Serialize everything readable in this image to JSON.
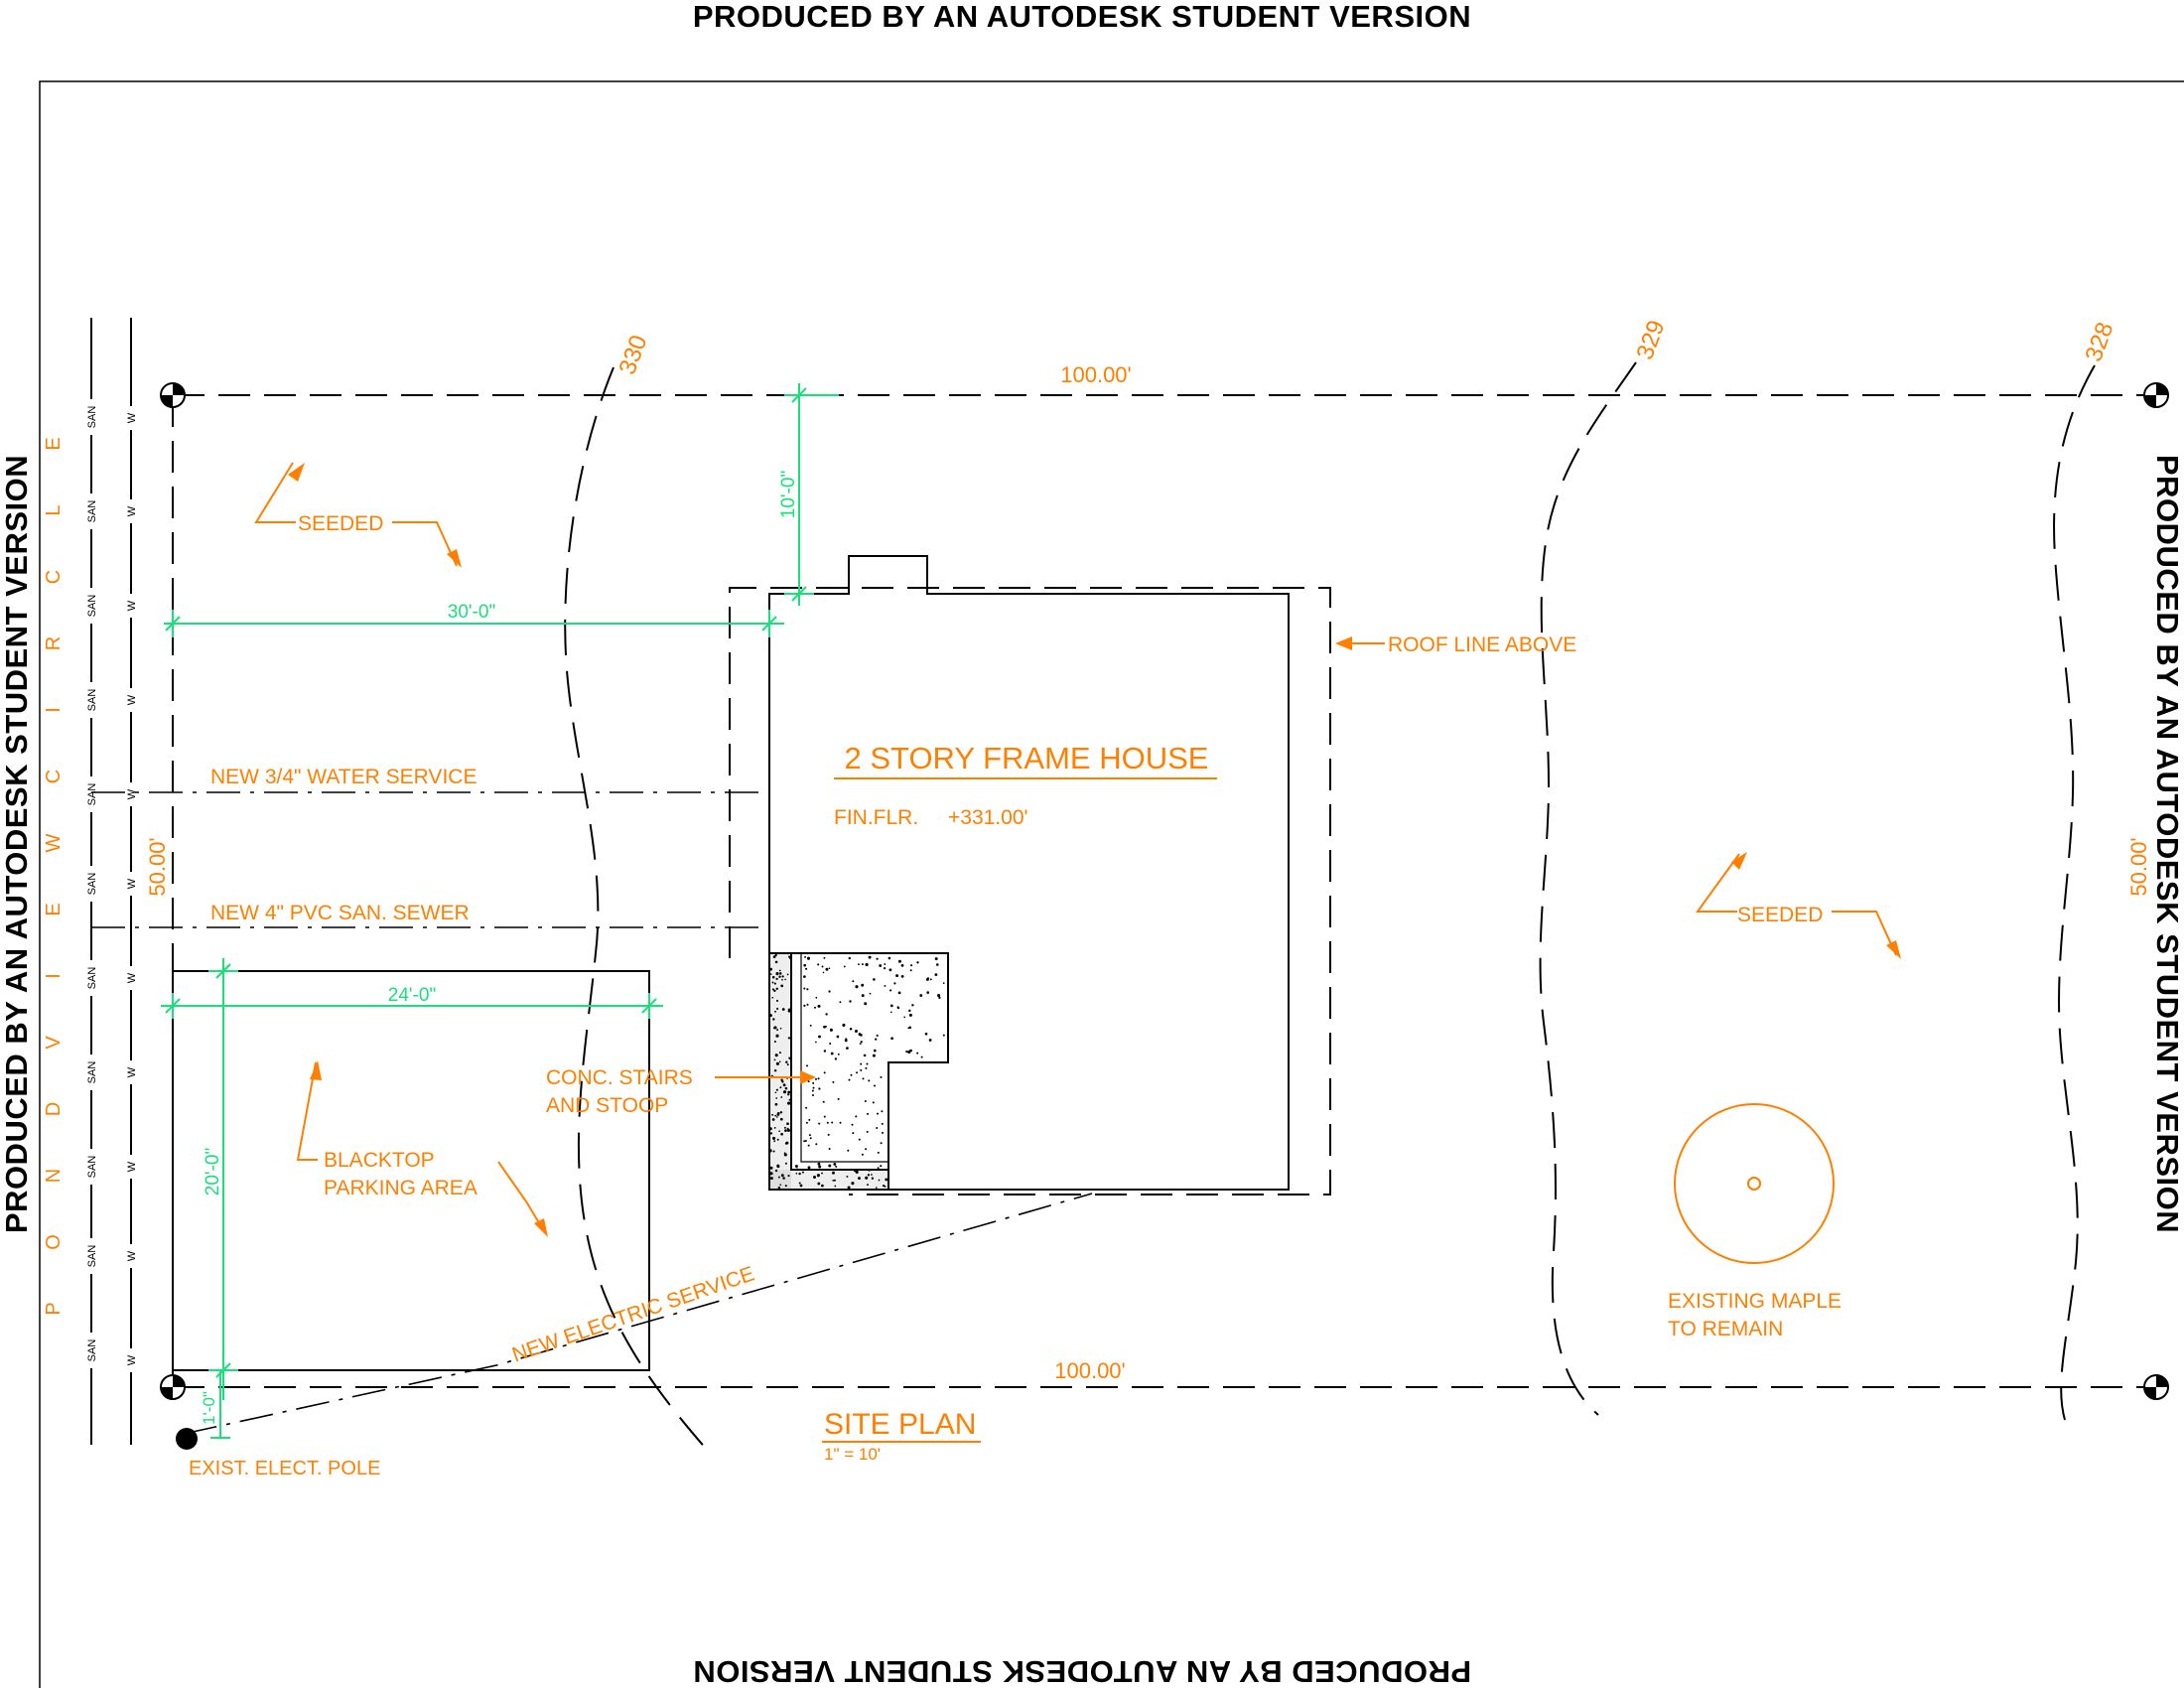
{
  "watermark": {
    "top": "PRODUCED BY AN AUTODESK STUDENT VERSION",
    "left": "PRODUCED BY AN AUTODESK STUDENT VERSION",
    "right": "PRODUCED BY AN AUTODESK STUDENT VERSION",
    "bottom": "PRODUCED BY AN AUTODESK STUDENT VERSION"
  },
  "street": {
    "name_letters": [
      "P",
      "O",
      "N",
      "D",
      "V",
      "I",
      "E",
      "W",
      "C",
      "I",
      "R",
      "C",
      "L",
      "E"
    ],
    "san_label": "SAN",
    "water_label": "W"
  },
  "property": {
    "top_length": "100.00'",
    "bottom_length": "100.00'",
    "left_width": "50.00'",
    "right_width": "50.00'"
  },
  "contours": [
    "330",
    "329",
    "328"
  ],
  "dimensions": {
    "setback_front": "10'-0\"",
    "setback_side": "30'-0\"",
    "parking_width": "24'-0\"",
    "parking_depth": "20'-0\"",
    "pole_offset": "1'-0\""
  },
  "labels": {
    "seeded_1": "SEEDED",
    "seeded_2": "SEEDED",
    "roof_line": "ROOF LINE ABOVE",
    "house_title": "2 STORY FRAME HOUSE",
    "fin_floor_label": "FIN.FLR.",
    "fin_floor_value": "+331.00'",
    "water_service": "NEW 3/4\" WATER SERVICE",
    "sewer": "NEW 4\" PVC SAN. SEWER",
    "stairs_1": "CONC. STAIRS",
    "stairs_2": "AND STOOP",
    "parking_1": "BLACKTOP",
    "parking_2": "PARKING AREA",
    "electric": "NEW ELECTRIC SERVICE",
    "maple_1": "EXISTING MAPLE",
    "maple_2": "TO REMAIN",
    "pole": "EXIST. ELECT. POLE"
  },
  "title_block": {
    "title": "SITE PLAN",
    "scale": "1\" = 10'"
  },
  "colors": {
    "annotation": "#ff7f00",
    "dimension": "#19e07a",
    "linework": "#000000"
  }
}
